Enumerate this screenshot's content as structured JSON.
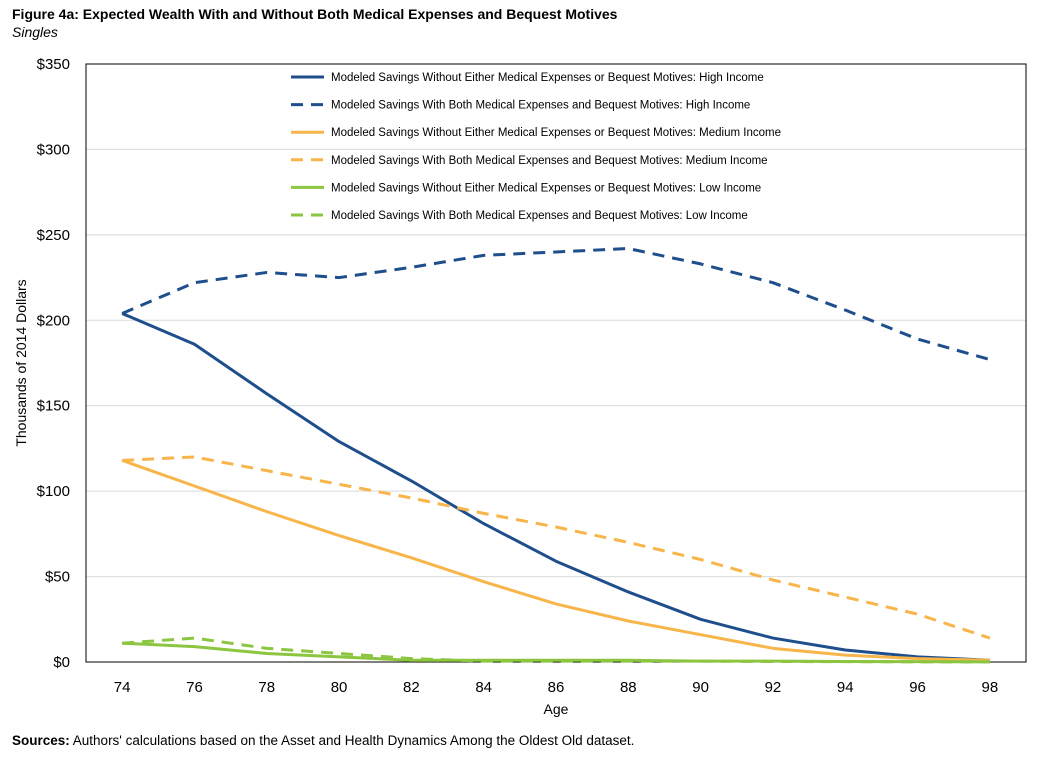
{
  "figure": {
    "title": "Figure 4a: Expected Wealth With and Without Both Medical Expenses and Bequest Motives",
    "subtitle": "Singles",
    "source_label": "Sources:",
    "source_text": " Authors' calculations based on the Asset and Health Dynamics Among the Oldest Old dataset."
  },
  "chart_data": {
    "type": "line",
    "xlabel": "Age",
    "ylabel": "Thousands of 2014 Dollars",
    "x": [
      74,
      76,
      78,
      80,
      82,
      84,
      86,
      88,
      90,
      92,
      94,
      96,
      98
    ],
    "xlim": [
      73,
      99
    ],
    "ylim": [
      0,
      350
    ],
    "yticks": [
      0,
      50,
      100,
      150,
      200,
      250,
      300,
      350
    ],
    "ytick_labels": [
      "$0",
      "$50",
      "$100",
      "$150",
      "$200",
      "$250",
      "$300",
      "$350"
    ],
    "grid": true,
    "legend_position": "top",
    "series": [
      {
        "name": "Modeled Savings Without Either Medical Expenses or Bequest Motives: High Income",
        "color": "#1f4e8c",
        "dash": "solid",
        "values": [
          204,
          186,
          157,
          129,
          106,
          81,
          59,
          41,
          25,
          14,
          7,
          3,
          1
        ]
      },
      {
        "name": "Modeled Savings With Both Medical Expenses and Bequest Motives: High Income",
        "color": "#1f4e8c",
        "dash": "dashed",
        "values": [
          204,
          222,
          228,
          225,
          231,
          238,
          240,
          242,
          233,
          222,
          206,
          189,
          177
        ]
      },
      {
        "name": "Modeled Savings Without Either Medical Expenses or Bequest Motives: Medium Income",
        "color": "#f7b54a",
        "dash": "solid",
        "values": [
          118,
          103,
          88,
          74,
          61,
          47,
          34,
          24,
          16,
          8,
          4,
          2,
          1
        ]
      },
      {
        "name": "Modeled Savings With Both Medical Expenses and Bequest Motives: Medium Income",
        "color": "#f7b54a",
        "dash": "dashed",
        "values": [
          118,
          120,
          112,
          104,
          96,
          87,
          79,
          70,
          60,
          48,
          38,
          28,
          14
        ]
      },
      {
        "name": "Modeled Savings Without Either Medical Expenses or Bequest Motives: Low Income",
        "color": "#8cc540",
        "dash": "solid",
        "values": [
          11,
          9,
          5,
          3,
          1,
          1,
          1,
          1,
          0.5,
          0.5,
          0.3,
          0.2,
          0.1
        ]
      },
      {
        "name": "Modeled Savings With Both Medical Expenses and Bequest Motives: Low Income",
        "color": "#8cc540",
        "dash": "dashed",
        "values": [
          11,
          14,
          8,
          5,
          2,
          0.5,
          0.5,
          0.5,
          0.5,
          0.3,
          0.2,
          0.1,
          0.1
        ]
      }
    ]
  }
}
